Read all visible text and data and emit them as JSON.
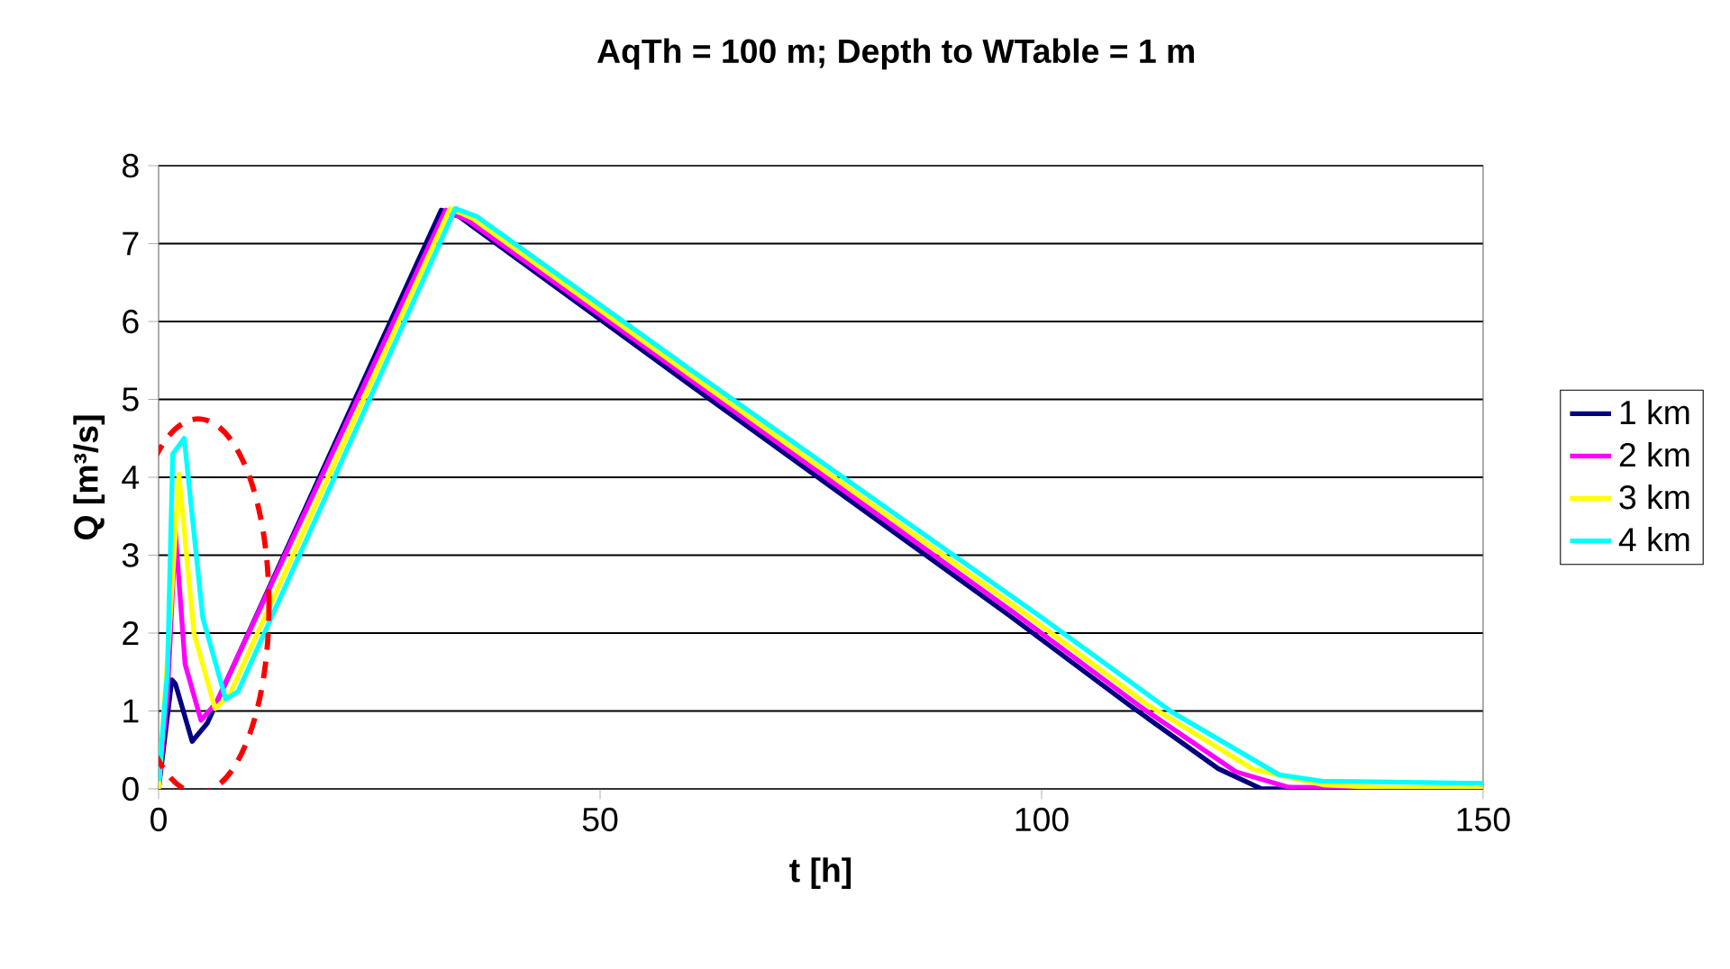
{
  "chart_data": {
    "type": "line",
    "title": "AqTh = 100 m; Depth to WTable = 1 m",
    "xlabel": "t [h]",
    "ylabel": "Q [m³/s]",
    "xlim": [
      0,
      150
    ],
    "ylim": [
      0,
      8
    ],
    "xticks": [
      0,
      50,
      100,
      150
    ],
    "yticks": [
      0,
      1,
      2,
      3,
      4,
      5,
      6,
      7,
      8
    ],
    "grid": "y",
    "legend": "right",
    "marker": "none",
    "line_style": "solid",
    "series": [
      {
        "name": "1 km",
        "color": "#000080",
        "x": [
          0,
          1.5,
          1.9,
          3.8,
          5.5,
          32,
          34,
          60,
          96.3,
          110,
          120,
          124.9,
          150
        ],
        "values": [
          0,
          1.4,
          1.35,
          0.61,
          0.84,
          7.43,
          7.35,
          5.2,
          2.23,
          1.07,
          0.26,
          0,
          0
        ]
      },
      {
        "name": "2 km",
        "color": "#ff00ff",
        "x": [
          0,
          1,
          1.9,
          3,
          4.8,
          6.5,
          32.5,
          35,
          60,
          97,
          111,
          122,
          128,
          150
        ],
        "values": [
          0,
          1.2,
          3.3,
          1.6,
          0.88,
          1.1,
          7.43,
          7.3,
          5.27,
          2.25,
          1.07,
          0.22,
          0.02,
          0
        ]
      },
      {
        "name": "3 km",
        "color": "#ffff00",
        "x": [
          0,
          1.2,
          2.3,
          4,
          6.4,
          8,
          33,
          35.5,
          60,
          98,
          112,
          124,
          132,
          138,
          150
        ],
        "values": [
          0,
          2,
          4.04,
          2,
          1.03,
          1.2,
          7.45,
          7.33,
          5.33,
          2.26,
          1.08,
          0.25,
          0.05,
          0.02,
          0
        ]
      },
      {
        "name": "4 km",
        "color": "#00ffff",
        "x": [
          0,
          1,
          1.6,
          2.9,
          5,
          7.6,
          9,
          33.6,
          36,
          60,
          100,
          114.7,
          126.9,
          131.7,
          150
        ],
        "values": [
          0.1,
          1.5,
          4.3,
          4.5,
          2.2,
          1.15,
          1.25,
          7.45,
          7.35,
          5.4,
          2.2,
          0.99,
          0.18,
          0.1,
          0.07
        ]
      }
    ]
  }
}
